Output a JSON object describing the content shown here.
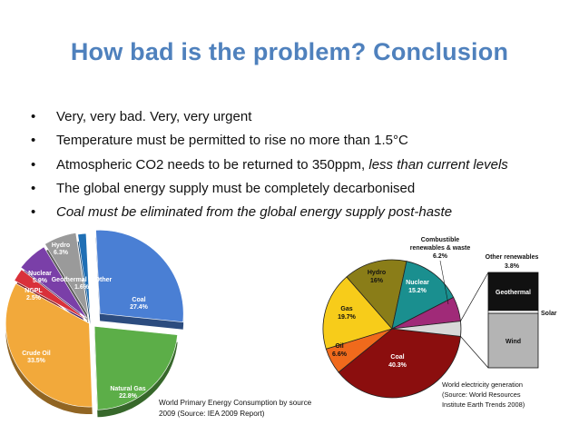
{
  "slide": {
    "title": "How bad is the problem? Conclusion",
    "bullets": [
      {
        "text": "Very, very bad. Very, very urgent",
        "italic_tail": ""
      },
      {
        "text": "Temperature must be permitted to rise no more than 1.5°C",
        "italic_tail": ""
      },
      {
        "text": "Atmospheric CO2 needs to be returned to 350ppm, ",
        "italic_tail": "less than current levels"
      },
      {
        "text": "The global energy supply must be completely decarbonised",
        "italic_tail": ""
      },
      {
        "text": "",
        "italic_tail": "Coal must be eliminated from the global energy supply post-haste"
      }
    ]
  },
  "chart_data": [
    {
      "type": "pie",
      "style": "3d-exploded",
      "caption": "World Primary Energy Consumption by source 2009 (Source: IEA 2009 Report)",
      "slices": [
        {
          "label": "Coal",
          "value_label": "27.4%",
          "value": 27.4,
          "color": "#4a7fd4"
        },
        {
          "label": "Natural Gas",
          "value_label": "22.8%",
          "value": 22.8,
          "color": "#5cae48"
        },
        {
          "label": "Crude Oil",
          "value_label": "33.5%",
          "value": 33.5,
          "color": "#f2a93b"
        },
        {
          "label": "NGPL",
          "value_label": "2.5%",
          "value": 2.5,
          "color": "#d9313a"
        },
        {
          "label": "Nuclear",
          "value_label": "5.9%",
          "value": 5.9,
          "color": "#7a3fa8"
        },
        {
          "label": "Hydro",
          "value_label": "6.3%",
          "value": 6.3,
          "color": "#9a9a9a"
        },
        {
          "label": "Geothermal & Other",
          "value_label": "1.6%",
          "value": 1.6,
          "color": "#1f6fb5"
        }
      ]
    },
    {
      "type": "pie",
      "style": "bar-of-pie",
      "caption": "World electricity generation (Source: World Resources Institute Earth Trends 2008)",
      "slices": [
        {
          "label": "Coal",
          "value_label": "40.3%",
          "value": 40.3,
          "color": "#8b0e0e"
        },
        {
          "label": "Oil",
          "value_label": "6.6%",
          "value": 6.6,
          "color": "#f06a1c"
        },
        {
          "label": "Gas",
          "value_label": "19.7%",
          "value": 19.7,
          "color": "#f7cc1a"
        },
        {
          "label": "Hydro",
          "value_label": "16%",
          "value": 16.0,
          "color": "#8a7d18"
        },
        {
          "label": "Nuclear",
          "value_label": "15.2%",
          "value": 15.2,
          "color": "#1a8f8f"
        },
        {
          "label": "Combustible renewables & waste",
          "value_label": "6.2%",
          "value": 6.2,
          "color": "#a02a78"
        },
        {
          "label": "Other renewables",
          "value_label": "3.8%",
          "value": 3.8,
          "color": "#d8d8d8"
        }
      ],
      "breakout": {
        "title": "Other renewables",
        "value_label": "3.8%",
        "segments": [
          {
            "label": "Geothermal",
            "color": "#111111"
          },
          {
            "label": "Solar",
            "color": "#ffffff"
          },
          {
            "label": "Wind",
            "color": "#b4b4b4"
          }
        ]
      }
    }
  ]
}
